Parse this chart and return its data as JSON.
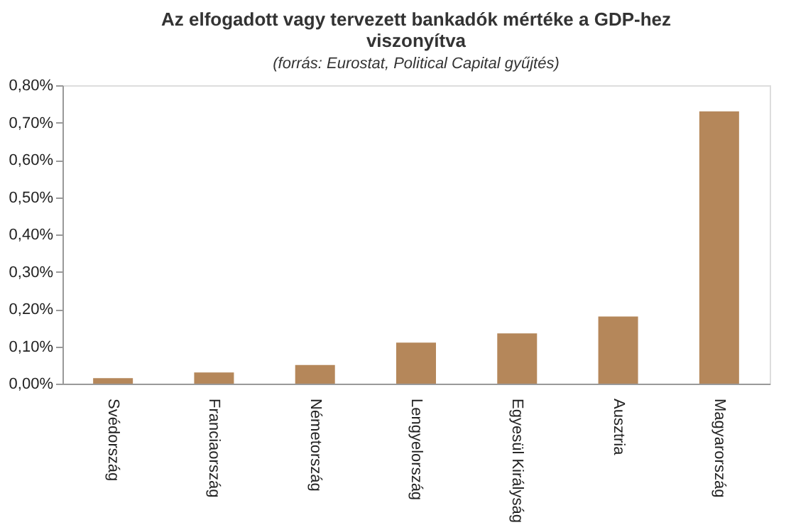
{
  "chart_data": {
    "type": "bar",
    "title": "Az elfogadott vagy tervezett bankadók mértéke a GDP-hez viszonyítva",
    "subtitle": "(forrás: Eurostat,  Political Capital gyűjtés)",
    "categories": [
      "Svédország",
      "Franciaország",
      "Németország",
      "Lengyelország",
      "Egyesül Királyság",
      "Ausztria",
      "Magyarország"
    ],
    "values": [
      0.015,
      0.03,
      0.05,
      0.11,
      0.135,
      0.18,
      0.73
    ],
    "color": "#b5875a",
    "ylim": [
      0,
      0.8
    ],
    "yticks": [
      {
        "value": 0,
        "label": "0,00%"
      },
      {
        "value": 0.1,
        "label": "0,10%"
      },
      {
        "value": 0.2,
        "label": "0,20%"
      },
      {
        "value": 0.3,
        "label": "0,30%"
      },
      {
        "value": 0.4,
        "label": "0,40%"
      },
      {
        "value": 0.5,
        "label": "0,50%"
      },
      {
        "value": 0.6,
        "label": "0,60%"
      },
      {
        "value": 0.7,
        "label": "0,70%"
      },
      {
        "value": 0.8,
        "label": "0,80%"
      }
    ],
    "grid": false
  }
}
